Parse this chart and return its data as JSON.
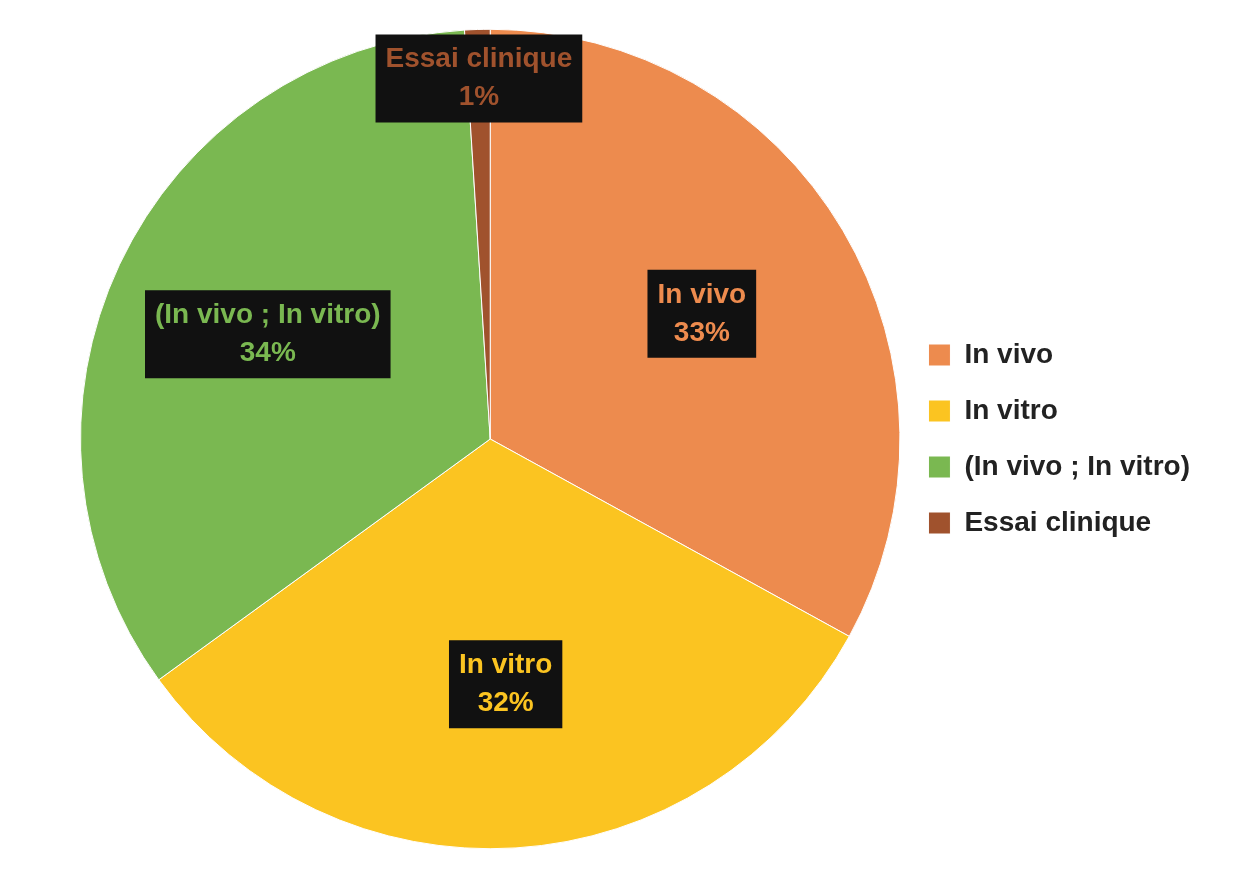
{
  "chart_data": {
    "type": "pie",
    "categories": [
      "In vivo",
      "In vitro",
      "(In vivo ; In vitro)",
      "Essai clinique"
    ],
    "values": [
      33,
      32,
      34,
      1
    ],
    "colors": [
      "#ed8b4e",
      "#fbc421",
      "#7ab851",
      "#a0522d"
    ],
    "value_labels": [
      "33%",
      "32%",
      "34%",
      "1%"
    ],
    "legend": "right"
  }
}
